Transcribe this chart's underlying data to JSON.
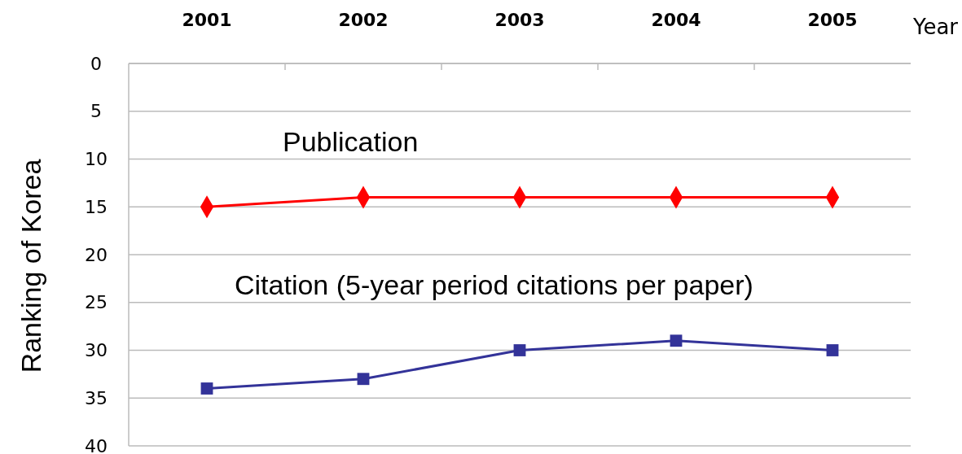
{
  "chart_data": {
    "type": "line",
    "xlabel": "Year",
    "ylabel": "Ranking of Korea",
    "categories": [
      "2001",
      "2002",
      "2003",
      "2004",
      "2005"
    ],
    "series": [
      {
        "name": "Publication",
        "color": "#ff0000",
        "marker": "diamond",
        "values": [
          15,
          14,
          14,
          14,
          14
        ]
      },
      {
        "name": "Citation (5-year period citations per paper)",
        "color": "#333399",
        "marker": "square",
        "values": [
          34,
          33,
          30,
          29,
          30
        ]
      }
    ],
    "ylim": [
      40,
      0
    ],
    "yticks": [
      0,
      5,
      10,
      15,
      20,
      25,
      30,
      35,
      40
    ],
    "grid": "y"
  }
}
